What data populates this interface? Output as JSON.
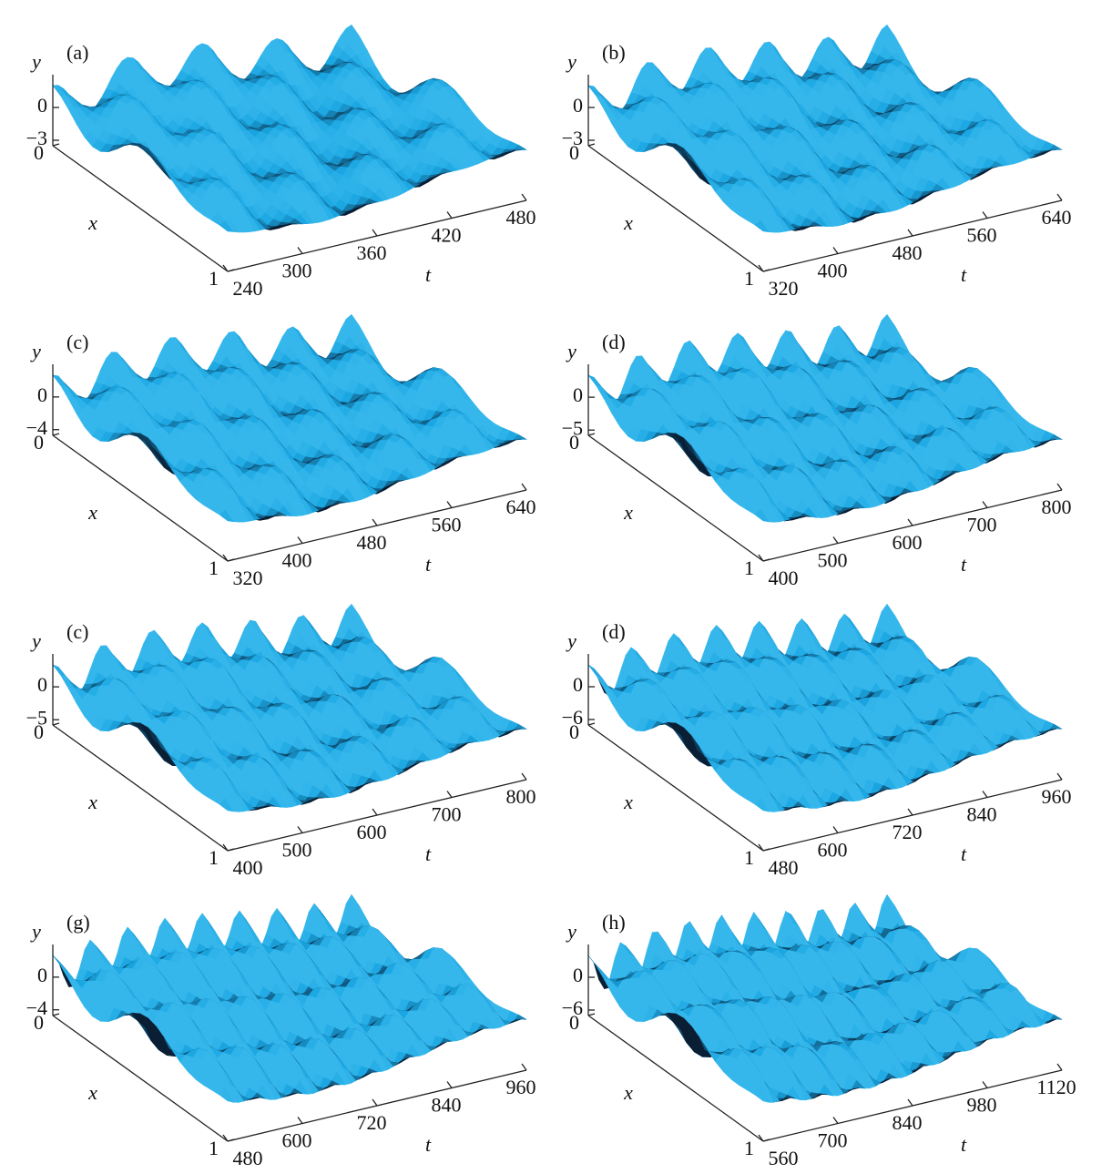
{
  "chart_data": [
    {
      "type": "surface",
      "title": "(a)",
      "color": "#1aa6e2",
      "xlabel": "t",
      "ylabel": "x",
      "zlabel": "y",
      "xlim": [
        240,
        480
      ],
      "xticks": [
        240,
        300,
        360,
        420,
        480
      ],
      "ylim": [
        0,
        1
      ],
      "yticks": [
        0,
        1
      ],
      "zlim": [
        -3.5,
        3
      ],
      "zticks": [
        {
          "value": -3,
          "label": "−3"
        },
        0
      ]
    },
    {
      "type": "surface",
      "title": "(b)",
      "color": "#1aa6e2",
      "xlabel": "t",
      "ylabel": "x",
      "zlabel": "y",
      "xlim": [
        320,
        640
      ],
      "xticks": [
        320,
        400,
        480,
        560,
        640
      ],
      "ylim": [
        0,
        1
      ],
      "yticks": [
        0,
        1
      ],
      "zlim": [
        -3.5,
        3
      ],
      "zticks": [
        {
          "value": -3,
          "label": "−3"
        },
        0
      ]
    },
    {
      "type": "surface",
      "title": "(c)",
      "color": "#1aa6e2",
      "xlabel": "t",
      "ylabel": "x",
      "zlabel": "y",
      "xlim": [
        320,
        640
      ],
      "xticks": [
        320,
        400,
        480,
        560,
        640
      ],
      "ylim": [
        0,
        1
      ],
      "yticks": [
        0,
        1
      ],
      "zlim": [
        -4.7,
        4
      ],
      "zticks": [
        {
          "value": -4,
          "label": "−4"
        },
        0
      ]
    },
    {
      "type": "surface",
      "title": "(d)",
      "color": "#1aa6e2",
      "xlabel": "t",
      "ylabel": "x",
      "zlabel": "y",
      "xlim": [
        400,
        800
      ],
      "xticks": [
        400,
        500,
        600,
        700,
        800
      ],
      "ylim": [
        0,
        1
      ],
      "yticks": [
        0,
        1
      ],
      "zlim": [
        -5.8,
        5
      ],
      "zticks": [
        {
          "value": -5,
          "label": "−5"
        },
        0
      ]
    },
    {
      "type": "surface",
      "title": "(c)",
      "color": "#1aa6e2",
      "xlabel": "t",
      "ylabel": "x",
      "zlabel": "y",
      "xlim": [
        400,
        800
      ],
      "xticks": [
        400,
        500,
        600,
        700,
        800
      ],
      "ylim": [
        0,
        1
      ],
      "yticks": [
        0,
        1
      ],
      "zlim": [
        -5.8,
        5
      ],
      "zticks": [
        {
          "value": -5,
          "label": "−5"
        },
        0
      ]
    },
    {
      "type": "surface",
      "title": "(d)",
      "color": "#1aa6e2",
      "xlabel": "t",
      "ylabel": "x",
      "zlabel": "y",
      "xlim": [
        480,
        960
      ],
      "xticks": [
        480,
        600,
        720,
        840,
        960
      ],
      "ylim": [
        0,
        1
      ],
      "yticks": [
        0,
        1
      ],
      "zlim": [
        -7,
        6
      ],
      "zticks": [
        {
          "value": -6,
          "label": "−6"
        },
        0
      ]
    },
    {
      "type": "surface",
      "title": "(g)",
      "color": "#1aa6e2",
      "xlabel": "t",
      "ylabel": "x",
      "zlabel": "y",
      "xlim": [
        480,
        960
      ],
      "xticks": [
        480,
        600,
        720,
        840,
        960
      ],
      "ylim": [
        0,
        1
      ],
      "yticks": [
        0,
        1
      ],
      "zlim": [
        -4.7,
        4
      ],
      "zticks": [
        {
          "value": -4,
          "label": "−4"
        },
        0
      ]
    },
    {
      "type": "surface",
      "title": "(h)",
      "color": "#1aa6e2",
      "xlabel": "t",
      "ylabel": "x",
      "zlabel": "y",
      "xlim": [
        560,
        1120
      ],
      "xticks": [
        560,
        700,
        840,
        980,
        1120
      ],
      "ylim": [
        0,
        1
      ],
      "yticks": [
        0,
        1
      ],
      "zlim": [
        -7,
        6
      ],
      "zticks": [
        {
          "value": -6,
          "label": "−6"
        },
        0
      ]
    }
  ]
}
